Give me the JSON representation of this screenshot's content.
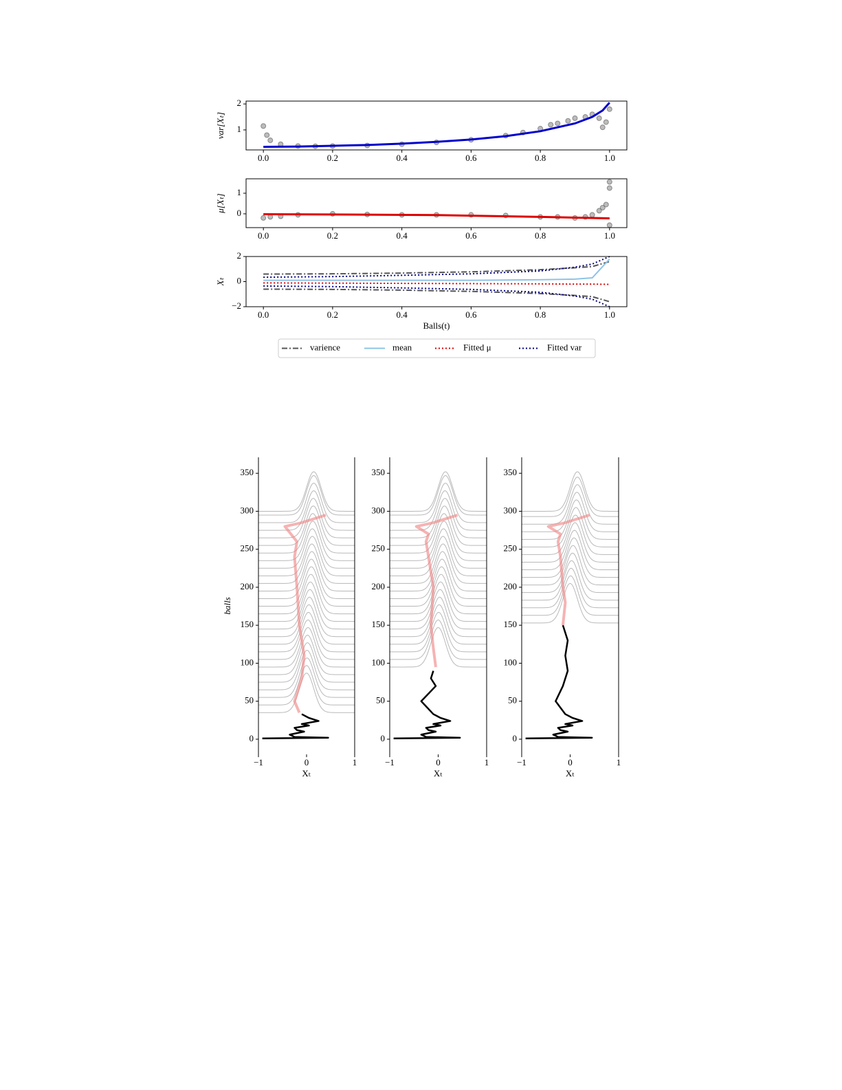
{
  "chart_data": [
    {
      "type": "scatter",
      "ylabel": "var[Xₜ]",
      "xlim": [
        -0.05,
        1.05
      ],
      "xticks": [
        {
          "value": 0,
          "label": "0.0"
        },
        {
          "value": 0.2,
          "label": "0.2"
        },
        {
          "value": 0.4,
          "label": "0.4"
        },
        {
          "value": 0.6,
          "label": "0.6"
        },
        {
          "value": 0.8,
          "label": "0.8"
        },
        {
          "value": 1,
          "label": "1.0"
        }
      ],
      "ylim": [
        0.23,
        2.11
      ],
      "yticks": [
        1,
        2
      ],
      "series": [
        {
          "kind": "scatter",
          "color": "#7a7a7a",
          "x": [
            0,
            0.01,
            0.02,
            0.05,
            0.1,
            0.15,
            0.2,
            0.3,
            0.4,
            0.5,
            0.6,
            0.7,
            0.75,
            0.8,
            0.83,
            0.85,
            0.88,
            0.9,
            0.93,
            0.95,
            0.97,
            0.98,
            0.99,
            1.0
          ],
          "values": [
            1.15,
            0.8,
            0.6,
            0.45,
            0.38,
            0.37,
            0.38,
            0.4,
            0.45,
            0.52,
            0.62,
            0.78,
            0.9,
            1.05,
            1.2,
            1.25,
            1.35,
            1.45,
            1.5,
            1.6,
            1.45,
            1.1,
            1.3,
            1.8
          ]
        },
        {
          "kind": "line",
          "color": "#0000cc",
          "x": [
            0,
            0.1,
            0.2,
            0.3,
            0.4,
            0.5,
            0.6,
            0.7,
            0.8,
            0.9,
            0.95,
            0.98,
            1.0
          ],
          "values": [
            0.35,
            0.36,
            0.39,
            0.42,
            0.47,
            0.54,
            0.63,
            0.76,
            0.95,
            1.25,
            1.5,
            1.75,
            2.05
          ]
        }
      ]
    },
    {
      "type": "scatter",
      "ylabel": "μ[Xₜ]",
      "xlim": [
        -0.05,
        1.05
      ],
      "xticks": [
        {
          "value": 0,
          "label": "0.0"
        },
        {
          "value": 0.2,
          "label": "0.2"
        },
        {
          "value": 0.4,
          "label": "0.4"
        },
        {
          "value": 0.6,
          "label": "0.6"
        },
        {
          "value": 0.8,
          "label": "0.8"
        },
        {
          "value": 1,
          "label": "1.0"
        }
      ],
      "ylim": [
        -0.67,
        1.7
      ],
      "yticks": [
        0,
        1
      ],
      "series": [
        {
          "kind": "scatter",
          "color": "#7a7a7a",
          "x": [
            0,
            0.02,
            0.05,
            0.1,
            0.2,
            0.3,
            0.4,
            0.5,
            0.6,
            0.7,
            0.8,
            0.85,
            0.9,
            0.93,
            0.95,
            0.97,
            0.98,
            0.99,
            1.0,
            1.0,
            1.0
          ],
          "values": [
            -0.2,
            -0.15,
            -0.12,
            -0.05,
            0.0,
            -0.03,
            -0.05,
            -0.05,
            -0.05,
            -0.08,
            -0.15,
            -0.15,
            -0.2,
            -0.15,
            -0.05,
            0.15,
            0.3,
            0.45,
            1.55,
            1.25,
            -0.55
          ]
        },
        {
          "kind": "line",
          "color": "#dd0000",
          "x": [
            0,
            0.2,
            0.5,
            0.8,
            1.0
          ],
          "values": [
            -0.02,
            -0.03,
            -0.06,
            -0.15,
            -0.22
          ]
        }
      ]
    },
    {
      "type": "line",
      "ylabel": "Xₜ",
      "xlabel": "Balls(t)",
      "xlim": [
        -0.05,
        1.05
      ],
      "xticks": [
        {
          "value": 0,
          "label": "0.0"
        },
        {
          "value": 0.2,
          "label": "0.2"
        },
        {
          "value": 0.4,
          "label": "0.4"
        },
        {
          "value": 0.6,
          "label": "0.6"
        },
        {
          "value": 0.8,
          "label": "0.8"
        },
        {
          "value": 1,
          "label": "1.0"
        }
      ],
      "ylim": [
        -2,
        2
      ],
      "yticks": [
        {
          "value": -2,
          "label": "−2"
        },
        0,
        2
      ],
      "legend": "below",
      "x": [
        0,
        0.2,
        0.4,
        0.6,
        0.8,
        0.9,
        0.95,
        1.0
      ],
      "series": [
        {
          "name": "varience",
          "style": "dashdot",
          "color": "#555555",
          "values": [
            0.6,
            0.62,
            0.68,
            0.78,
            0.95,
            1.1,
            1.2,
            1.6
          ],
          "values_lower": [
            -0.6,
            -0.62,
            -0.68,
            -0.78,
            -0.95,
            -1.1,
            -1.2,
            -1.6
          ]
        },
        {
          "name": "mean",
          "style": "solid",
          "color": "#8ec3e6",
          "values": [
            0.1,
            0.1,
            0.1,
            0.1,
            0.15,
            0.2,
            0.3,
            1.8
          ]
        },
        {
          "name": "Fitted μ",
          "style": "dotted",
          "color": "#dd0000",
          "values": [
            -0.1,
            -0.12,
            -0.14,
            -0.16,
            -0.18,
            -0.2,
            -0.2,
            -0.22
          ]
        },
        {
          "name": "Fitted var",
          "style": "dotted",
          "color": "#000080",
          "values": [
            0.35,
            0.4,
            0.5,
            0.62,
            0.85,
            1.15,
            1.4,
            2.0
          ],
          "values_lower": [
            -0.35,
            -0.4,
            -0.5,
            -0.62,
            -0.85,
            -1.15,
            -1.4,
            -2.0
          ]
        }
      ]
    },
    {
      "type": "ridge",
      "ylabel": "balls",
      "xlabel": "Xₜ",
      "xlim": [
        -1,
        1
      ],
      "xticks": [
        {
          "value": -1,
          "label": "−1"
        },
        0,
        1
      ],
      "ylim": [
        -20,
        371
      ],
      "yticks": [
        0,
        50,
        100,
        150,
        200,
        250,
        300,
        350
      ],
      "ridge_height": 52,
      "ridge_sd": 0.15,
      "baselines": [
        35,
        45,
        55,
        65,
        75,
        85,
        95,
        105,
        115,
        125,
        135,
        145,
        155,
        165,
        175,
        185,
        195,
        205,
        215,
        225,
        235,
        245,
        255,
        265,
        275,
        285,
        295,
        300
      ],
      "centers": [
        0.0,
        0.0,
        0.01,
        0.01,
        0.02,
        0.02,
        0.03,
        0.03,
        0.04,
        0.05,
        0.06,
        0.07,
        0.08,
        0.09,
        0.1,
        0.1,
        0.11,
        0.11,
        0.12,
        0.12,
        0.13,
        0.13,
        0.14,
        0.14,
        0.15,
        0.15,
        0.15,
        0.15
      ],
      "series": [
        {
          "color": "#000000",
          "x": [
            -0.92,
            0.45,
            -0.25,
            -0.35,
            -0.05,
            -0.2,
            -0.25,
            0.05,
            -0.1,
            0.25,
            0.05,
            -0.1
          ],
          "values": [
            1,
            2,
            3,
            6,
            10,
            12,
            15,
            18,
            20,
            24,
            28,
            33
          ]
        },
        {
          "color": "#f08080",
          "x": [
            -0.15,
            -0.25,
            -0.1,
            -0.05,
            -0.15,
            -0.2,
            -0.25,
            -0.2,
            -0.45,
            -0.1,
            0.4
          ],
          "values": [
            35,
            50,
            80,
            110,
            150,
            200,
            240,
            260,
            280,
            285,
            295
          ]
        }
      ]
    },
    {
      "type": "ridge",
      "xlabel": "Xₜ",
      "xlim": [
        -1,
        1
      ],
      "xticks": [
        {
          "value": -1,
          "label": "−1"
        },
        0,
        1
      ],
      "ylim": [
        -20,
        371
      ],
      "yticks": [
        0,
        50,
        100,
        150,
        200,
        250,
        300,
        350
      ],
      "ridge_height": 52,
      "ridge_sd": 0.15,
      "baselines": [
        95,
        105,
        115,
        125,
        135,
        145,
        155,
        165,
        175,
        185,
        195,
        205,
        215,
        225,
        235,
        245,
        255,
        265,
        275,
        285,
        295,
        300
      ],
      "centers": [
        0.0,
        0.0,
        0.01,
        0.02,
        0.03,
        0.04,
        0.05,
        0.06,
        0.07,
        0.08,
        0.09,
        0.1,
        0.1,
        0.11,
        0.12,
        0.12,
        0.13,
        0.14,
        0.14,
        0.15,
        0.15,
        0.15
      ],
      "series": [
        {
          "color": "#000000",
          "x": [
            -0.92,
            0.45,
            -0.25,
            -0.35,
            -0.05,
            -0.2,
            -0.25,
            0.05,
            -0.1,
            0.25,
            0.05,
            -0.1,
            -0.35,
            -0.2,
            -0.05,
            -0.15,
            -0.1
          ],
          "values": [
            1,
            2,
            3,
            6,
            10,
            12,
            15,
            18,
            20,
            24,
            28,
            33,
            50,
            60,
            70,
            80,
            90
          ]
        },
        {
          "color": "#f08080",
          "x": [
            -0.05,
            -0.1,
            -0.15,
            -0.1,
            -0.2,
            -0.25,
            -0.2,
            -0.45,
            -0.1,
            0.4
          ],
          "values": [
            95,
            120,
            150,
            200,
            240,
            260,
            270,
            280,
            285,
            295
          ]
        }
      ]
    },
    {
      "type": "ridge",
      "xlabel": "Xₜ",
      "xlim": [
        -1,
        1
      ],
      "xticks": [
        {
          "value": -1,
          "label": "−1"
        },
        0,
        1
      ],
      "ylim": [
        -20,
        371
      ],
      "yticks": [
        0,
        50,
        100,
        150,
        200,
        250,
        300,
        350
      ],
      "ridge_height": 52,
      "ridge_sd": 0.15,
      "baselines": [
        153,
        163,
        173,
        183,
        193,
        203,
        213,
        223,
        233,
        243,
        253,
        263,
        273,
        283,
        293,
        300
      ],
      "centers": [
        0.0,
        0.01,
        0.02,
        0.03,
        0.05,
        0.06,
        0.08,
        0.09,
        0.1,
        0.11,
        0.12,
        0.13,
        0.14,
        0.15,
        0.15,
        0.15
      ],
      "series": [
        {
          "color": "#000000",
          "x": [
            -0.92,
            0.45,
            -0.25,
            -0.35,
            -0.05,
            -0.2,
            -0.25,
            0.05,
            -0.1,
            0.25,
            0.05,
            -0.1,
            -0.3,
            -0.15,
            -0.05,
            -0.1,
            -0.05,
            -0.15
          ],
          "values": [
            1,
            2,
            3,
            6,
            10,
            12,
            15,
            18,
            20,
            24,
            28,
            33,
            50,
            70,
            90,
            110,
            130,
            150
          ]
        },
        {
          "color": "#f08080",
          "x": [
            -0.15,
            -0.1,
            -0.15,
            -0.2,
            -0.25,
            -0.2,
            -0.45,
            -0.1,
            0.4
          ],
          "values": [
            150,
            180,
            200,
            240,
            260,
            270,
            280,
            285,
            295
          ]
        }
      ]
    }
  ]
}
